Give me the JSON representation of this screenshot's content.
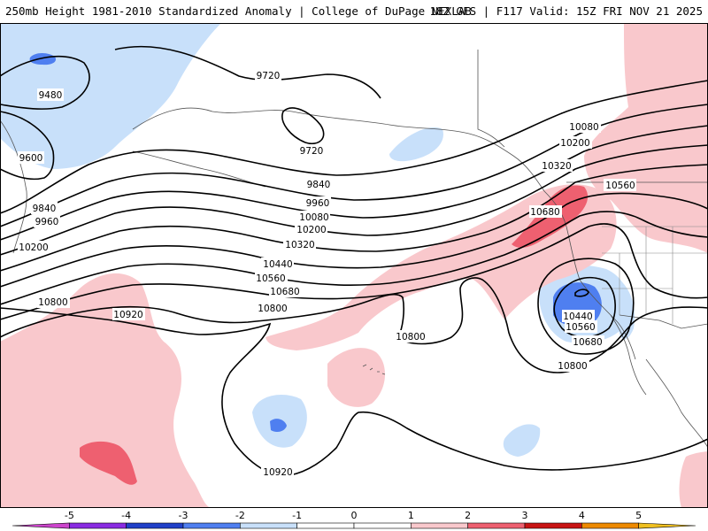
{
  "header": {
    "title": "250mb Height 1981-2010 Standardized Anomaly | College of DuPage NEXLAB",
    "run_info": "18Z GFS | F117 Valid: 15Z FRI NOV 21 2025"
  },
  "map": {
    "variable": "250mb Height",
    "anomaly_units": "standard deviations",
    "contour_labels": {
      "c9480": "9480",
      "c9600": "9600",
      "c9720a": "9720",
      "c9720b": "9720",
      "c9840a": "9840",
      "c9840b": "9840",
      "c9960a": "9960",
      "c9960b": "9960",
      "c10080a": "10080",
      "c10080b": "10080",
      "c10200a": "10200",
      "c10200b": "10200",
      "c10200c": "10200",
      "c10320a": "10320",
      "c10320b": "10320",
      "c10440a": "10440",
      "c10440b": "10440",
      "c10560a": "10560",
      "c10560b": "10560",
      "c10560c": "10560",
      "c10680a": "10680",
      "c10680b": "10680",
      "c10680c": "10680",
      "c10800a": "10800",
      "c10800b": "10800",
      "c10800c": "10800",
      "c10800d": "10800",
      "c10920a": "10920",
      "c10920b": "10920"
    }
  },
  "colorbar": {
    "ticks": [
      "-5",
      "-4",
      "-3",
      "-2",
      "-1",
      "0",
      "1",
      "2",
      "3",
      "4",
      "5"
    ],
    "colors": [
      "#cc44cc",
      "#8a2be2",
      "#2040c8",
      "#4f7ff0",
      "#c8e0fa",
      "#ffffff",
      "#ffffff",
      "#f9c8cc",
      "#ee6070",
      "#c81414",
      "#ee8a00",
      "#f0c020"
    ]
  }
}
